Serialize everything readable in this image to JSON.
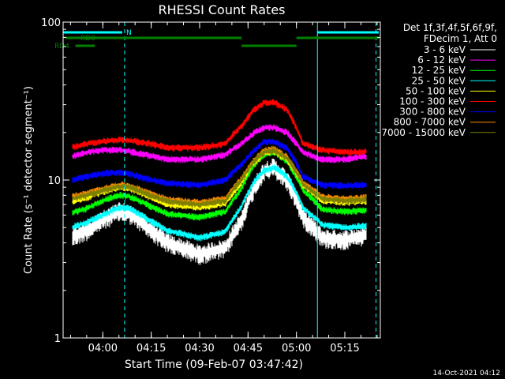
{
  "chart_data": {
    "type": "line",
    "title": "RHESSI Count Rates",
    "xlabel": "Start Time (09-Feb-07 03:47:42)",
    "ylabel": "Count Rate (s⁻¹ detector segment⁻¹)",
    "y_scale": "log",
    "ylim": [
      1,
      100
    ],
    "xlim": [
      "03:47:42",
      "05:26:00"
    ],
    "x_ticks": [
      "04:00",
      "04:15",
      "04:30",
      "04:45",
      "05:00",
      "05:15"
    ],
    "y_ticks": [
      "1",
      "10",
      "100"
    ],
    "legend_header": [
      "Det 1f,3f,4f,5f,6f,9f,",
      "FDecim 1, Att 0"
    ],
    "legend_position": "right",
    "series": [
      {
        "name": "3 - 6 keV",
        "color": "#ffffff",
        "x": [
          "03:50",
          "03:55",
          "04:00",
          "04:05",
          "04:08",
          "04:15",
          "04:20",
          "04:30",
          "04:38",
          "04:43",
          "04:47",
          "04:50",
          "04:53",
          "04:57",
          "05:02",
          "05:08",
          "05:15",
          "05:20",
          "05:25"
        ],
        "values": [
          4.3,
          4.8,
          5.6,
          6.3,
          6.2,
          4.8,
          4.0,
          3.4,
          3.7,
          5.5,
          9.0,
          11.5,
          12.0,
          10.0,
          5.8,
          4.3,
          4.2,
          4.4,
          4.5
        ]
      },
      {
        "name": "6 - 12 keV",
        "color": "#ff00ff",
        "x": [
          "03:50",
          "03:55",
          "04:00",
          "04:05",
          "04:08",
          "04:15",
          "04:20",
          "04:30",
          "04:38",
          "04:43",
          "04:47",
          "04:50",
          "04:53",
          "04:57",
          "05:02",
          "05:08",
          "05:15",
          "05:20",
          "05:25"
        ],
        "values": [
          14.0,
          15.0,
          15.5,
          15.5,
          15.2,
          14.2,
          13.5,
          13.5,
          14.5,
          17.0,
          20.0,
          21.5,
          21.5,
          20.0,
          15.0,
          13.5,
          13.5,
          14.0,
          14.5
        ]
      },
      {
        "name": "12 - 25 keV",
        "color": "#00ff00",
        "x": [
          "03:50",
          "03:55",
          "04:00",
          "04:05",
          "04:08",
          "04:15",
          "04:20",
          "04:30",
          "04:38",
          "04:43",
          "04:47",
          "04:50",
          "04:53",
          "04:57",
          "05:02",
          "05:08",
          "05:15",
          "05:20",
          "05:25"
        ],
        "values": [
          6.2,
          6.6,
          7.4,
          8.0,
          7.9,
          6.8,
          6.1,
          5.8,
          6.3,
          8.8,
          12.5,
          14.5,
          15.0,
          13.2,
          8.6,
          6.5,
          6.3,
          6.4,
          6.5
        ]
      },
      {
        "name": "25 - 50 keV",
        "color": "#00ffff",
        "x": [
          "03:50",
          "03:55",
          "04:00",
          "04:05",
          "04:08",
          "04:15",
          "04:20",
          "04:30",
          "04:38",
          "04:43",
          "04:47",
          "04:50",
          "04:53",
          "04:57",
          "05:02",
          "05:08",
          "05:15",
          "05:20",
          "05:25"
        ],
        "values": [
          5.0,
          5.4,
          6.0,
          6.7,
          6.6,
          5.5,
          4.8,
          4.3,
          4.7,
          6.8,
          9.8,
          11.5,
          12.0,
          10.6,
          6.7,
          5.2,
          5.0,
          5.1,
          5.2
        ]
      },
      {
        "name": "50 - 100 keV",
        "color": "#ffff00",
        "x": [
          "03:50",
          "03:55",
          "04:00",
          "04:05",
          "04:08",
          "04:15",
          "04:20",
          "04:30",
          "04:38",
          "04:43",
          "04:47",
          "04:50",
          "04:53",
          "04:57",
          "05:02",
          "05:08",
          "05:15",
          "05:20",
          "05:25"
        ],
        "values": [
          7.3,
          7.7,
          8.4,
          9.0,
          8.9,
          7.7,
          7.0,
          6.7,
          7.1,
          9.6,
          13.0,
          14.8,
          15.2,
          13.6,
          9.3,
          7.4,
          7.2,
          7.3,
          7.4
        ]
      },
      {
        "name": "100 - 300 keV",
        "color": "#ff0000",
        "x": [
          "03:50",
          "03:55",
          "04:00",
          "04:05",
          "04:08",
          "04:15",
          "04:20",
          "04:30",
          "04:38",
          "04:43",
          "04:47",
          "04:50",
          "04:53",
          "04:57",
          "05:02",
          "05:08",
          "05:15",
          "05:20",
          "05:25"
        ],
        "values": [
          16.0,
          17.0,
          17.5,
          18.0,
          17.8,
          17.0,
          16.0,
          16.0,
          17.0,
          22.0,
          28.0,
          31.0,
          31.0,
          28.0,
          17.0,
          15.5,
          15.0,
          15.0,
          15.5
        ]
      },
      {
        "name": "300 - 800 keV",
        "color": "#0000ff",
        "x": [
          "03:50",
          "03:55",
          "04:00",
          "04:05",
          "04:08",
          "04:15",
          "04:20",
          "04:30",
          "04:38",
          "04:43",
          "04:47",
          "04:50",
          "04:53",
          "04:57",
          "05:02",
          "05:08",
          "05:15",
          "05:20",
          "05:25"
        ],
        "values": [
          10.0,
          10.5,
          11.0,
          11.2,
          11.0,
          10.0,
          9.5,
          9.3,
          10.0,
          12.5,
          15.5,
          17.5,
          17.5,
          16.0,
          10.5,
          9.3,
          9.2,
          9.3,
          9.5
        ]
      },
      {
        "name": "800 - 7000 keV",
        "color": "#ff8c00",
        "x": [
          "03:50",
          "03:55",
          "04:00",
          "04:05",
          "04:08",
          "04:15",
          "04:20",
          "04:30",
          "04:38",
          "04:43",
          "04:47",
          "04:50",
          "04:53",
          "04:57",
          "05:02",
          "05:08",
          "05:15",
          "05:20",
          "05:25"
        ],
        "values": [
          7.8,
          8.2,
          8.8,
          9.3,
          9.2,
          8.2,
          7.5,
          7.2,
          7.6,
          10.2,
          13.5,
          15.3,
          15.7,
          14.0,
          9.6,
          7.8,
          7.6,
          7.7,
          7.8
        ]
      },
      {
        "name": "7000 - 15000 keV",
        "color": "#808000",
        "x": [
          "03:50",
          "03:55",
          "04:00",
          "04:05",
          "04:08",
          "04:15",
          "04:20",
          "04:30",
          "04:38",
          "04:43",
          "04:47",
          "04:50",
          "04:53",
          "04:57",
          "05:02",
          "05:08",
          "05:15",
          "05:20",
          "05:25"
        ],
        "values": [
          7.6,
          8.0,
          8.6,
          9.1,
          9.0,
          8.0,
          7.3,
          7.0,
          7.4,
          10.0,
          13.2,
          15.0,
          15.4,
          13.8,
          9.4,
          7.6,
          7.4,
          7.5,
          7.6
        ]
      }
    ],
    "vertical_lines": [
      {
        "time": "03:47:42",
        "style": "solid",
        "color": "#00ffff"
      },
      {
        "time": "04:06:45",
        "style": "dashed",
        "color": "#00ffff"
      },
      {
        "time": "05:06:30",
        "style": "solid",
        "color": "#00ffff"
      },
      {
        "time": "05:24:40",
        "style": "dashed",
        "color": "#00ffff"
      }
    ],
    "flag_bars": [
      {
        "label": "N",
        "color": "#00ffff",
        "segments": [
          [
            "03:47:42",
            "04:06:00"
          ],
          [
            "05:06:30",
            "05:25:30"
          ]
        ]
      },
      {
        "label": "RD0",
        "color": "#008000",
        "segments": [
          [
            "03:48:30",
            "04:43:00"
          ],
          [
            "05:00:00",
            "05:25:30"
          ]
        ]
      },
      {
        "label": "",
        "color": "#008000",
        "segments": [
          [
            "04:43:00",
            "05:00:00"
          ]
        ]
      },
      {
        "label": "RD4",
        "color": "#008000",
        "segments": [
          [
            "03:51:30",
            "03:57:30"
          ]
        ]
      }
    ]
  },
  "footer_timestamp": "14-Oct-2021 04:12"
}
